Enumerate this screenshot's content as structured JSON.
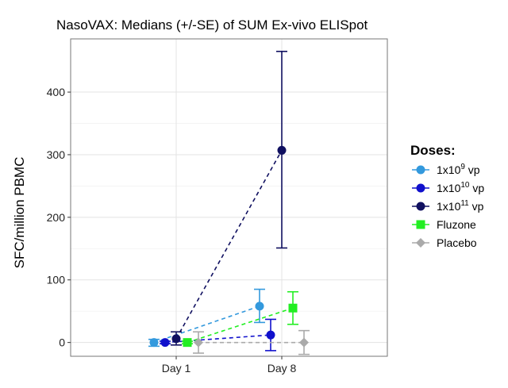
{
  "chart_data": {
    "type": "line",
    "title": "NasoVAX: Medians (+/-SE) of SUM Ex-vivo ELISpot",
    "xlabel": "",
    "ylabel": "SFC/million PBMC",
    "categories": [
      "Day 1",
      "Day 8"
    ],
    "ylim": [
      -22,
      485
    ],
    "yticks": [
      0,
      100,
      200,
      300,
      400
    ],
    "grid": true,
    "legend": {
      "title": "Doses:",
      "position": "right"
    },
    "series": [
      {
        "name": "1x10",
        "exp": "9",
        "unit": "vp",
        "color": "#3399dd",
        "marker": "circle",
        "values": [
          0,
          58
        ],
        "lower": [
          -6,
          32
        ],
        "upper": [
          5,
          85
        ]
      },
      {
        "name": "1x10",
        "exp": "10",
        "unit": "vp",
        "color": "#1010cc",
        "marker": "circle",
        "values": [
          0,
          12
        ],
        "lower": [
          -2,
          -13
        ],
        "upper": [
          2,
          37
        ]
      },
      {
        "name": "1x10",
        "exp": "11",
        "unit": "vp",
        "color": "#101060",
        "marker": "circle",
        "values": [
          6,
          307
        ],
        "lower": [
          -4,
          151
        ],
        "upper": [
          17,
          465
        ]
      },
      {
        "name": "Fluzone",
        "color": "#22ee22",
        "marker": "square",
        "values": [
          0,
          55
        ],
        "lower": [
          -2,
          29
        ],
        "upper": [
          2,
          81
        ]
      },
      {
        "name": "Placebo",
        "color": "#aaaaaa",
        "marker": "diamond",
        "values": [
          0,
          0
        ],
        "lower": [
          -17,
          -19
        ],
        "upper": [
          17,
          19
        ]
      }
    ]
  }
}
